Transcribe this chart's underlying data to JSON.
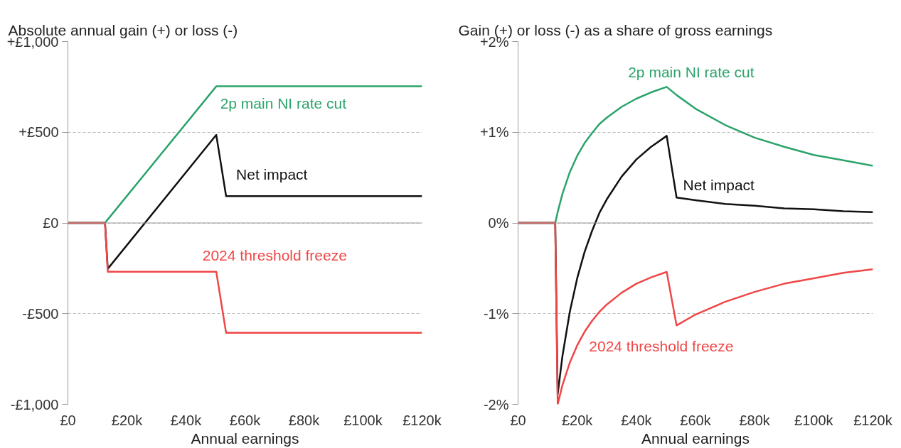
{
  "chart_data": [
    {
      "type": "line",
      "title": "Absolute annual gain (+) or loss (-)",
      "xlabel": "Annual earnings",
      "x": [
        0,
        12570,
        13500,
        50270,
        53600,
        120000
      ],
      "series": [
        {
          "name": "2p main NI rate cut",
          "color": "#2ba36b",
          "values": [
            0,
            0,
            19,
            753,
            753,
            753
          ]
        },
        {
          "name": "Net impact",
          "color": "#111111",
          "values": [
            0,
            0,
            -253,
            485,
            148,
            148
          ]
        },
        {
          "name": "2024 threshold freeze",
          "color": "#f04646",
          "values": [
            0,
            0,
            -269,
            -269,
            -606,
            -606
          ]
        }
      ],
      "xlim": [
        0,
        120000
      ],
      "xticks": [
        {
          "value": 0,
          "label": "£0"
        },
        {
          "value": 20000,
          "label": "£20k"
        },
        {
          "value": 40000,
          "label": "£40k"
        },
        {
          "value": 60000,
          "label": "£60k"
        },
        {
          "value": 80000,
          "label": "£80k"
        },
        {
          "value": 100000,
          "label": "£100k"
        },
        {
          "value": 120000,
          "label": "£120k"
        }
      ],
      "ylim": [
        -1000,
        1000
      ],
      "yticks": [
        {
          "value": 1000,
          "label": "+£1,000"
        },
        {
          "value": 500,
          "label": "+£500"
        },
        {
          "value": 0,
          "label": "£0"
        },
        {
          "value": -500,
          "label": "-£500"
        },
        {
          "value": -1000,
          "label": "-£1,000"
        }
      ],
      "grid": "y",
      "legend": false,
      "line_style": "solid",
      "marker": "none"
    },
    {
      "type": "line",
      "title": "Gain (+) or loss (-) as a share of gross earnings",
      "xlabel": "Annual earnings",
      "x": [
        0,
        12570,
        13400,
        15000,
        17500,
        20000,
        22500,
        25000,
        27500,
        30000,
        35000,
        40000,
        45000,
        50270,
        53600,
        60000,
        70000,
        80000,
        90000,
        100000,
        110000,
        120000
      ],
      "series": [
        {
          "name": "2p main NI rate cut",
          "color": "#2ba36b",
          "values": [
            0,
            0,
            0.12,
            0.32,
            0.56,
            0.74,
            0.88,
            0.99,
            1.09,
            1.16,
            1.28,
            1.37,
            1.44,
            1.5,
            1.41,
            1.26,
            1.08,
            0.94,
            0.84,
            0.75,
            0.69,
            0.63
          ]
        },
        {
          "name": "Net impact",
          "color": "#111111",
          "values": [
            0,
            0,
            -1.89,
            -1.47,
            -0.98,
            -0.61,
            -0.32,
            -0.09,
            0.11,
            0.26,
            0.51,
            0.7,
            0.84,
            0.96,
            0.28,
            0.25,
            0.21,
            0.19,
            0.16,
            0.15,
            0.13,
            0.12
          ]
        },
        {
          "name": "2024 threshold freeze",
          "color": "#f04646",
          "values": [
            0,
            0,
            -2.0,
            -1.79,
            -1.54,
            -1.35,
            -1.2,
            -1.08,
            -0.98,
            -0.9,
            -0.77,
            -0.67,
            -0.6,
            -0.54,
            -1.13,
            -1.01,
            -0.87,
            -0.76,
            -0.67,
            -0.61,
            -0.55,
            -0.51
          ]
        }
      ],
      "xlim": [
        0,
        120000
      ],
      "xticks": [
        {
          "value": 0,
          "label": "£0"
        },
        {
          "value": 20000,
          "label": "£20k"
        },
        {
          "value": 40000,
          "label": "£40k"
        },
        {
          "value": 60000,
          "label": "£60k"
        },
        {
          "value": 80000,
          "label": "£80k"
        },
        {
          "value": 100000,
          "label": "£100k"
        },
        {
          "value": 120000,
          "label": "£120k"
        }
      ],
      "ylim": [
        -2,
        2
      ],
      "yticks": [
        {
          "value": 2,
          "label": "+2%"
        },
        {
          "value": 1,
          "label": "+1%"
        },
        {
          "value": 0,
          "label": "0%"
        },
        {
          "value": -1,
          "label": "-1%"
        },
        {
          "value": -2,
          "label": "-2%"
        }
      ],
      "grid": "y",
      "legend": false,
      "line_style": "solid",
      "marker": "none"
    }
  ]
}
